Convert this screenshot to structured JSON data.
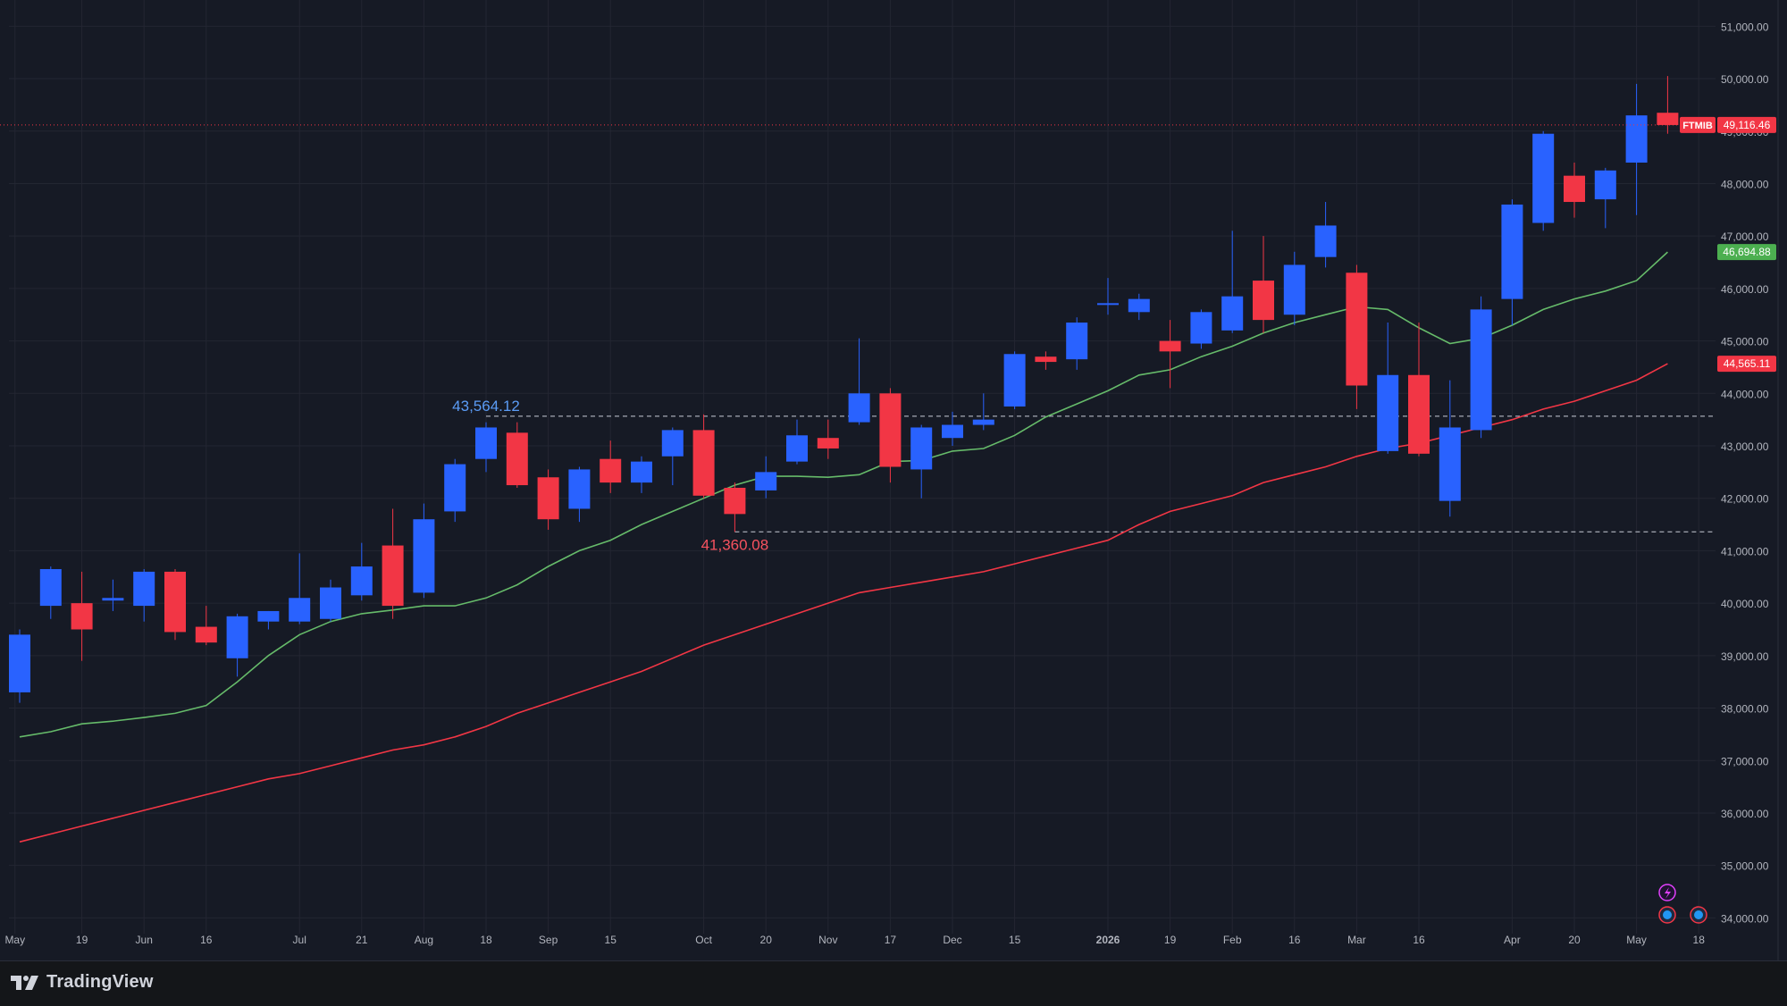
{
  "branding": {
    "logo_text": "TradingView"
  },
  "chart_data": {
    "type": "candlestick",
    "symbol": "FTMIB",
    "last_price": "49,116.46",
    "ema_fast_last": "46,694.88",
    "ema_slow_last": "44,565.11",
    "high_marker": "43,564.12",
    "low_marker": "41,360.08",
    "high_value": 43564.12,
    "low_value": 41360.08,
    "y_ticks": [
      "34,000.00",
      "35,000.00",
      "36,000.00",
      "37,000.00",
      "38,000.00",
      "39,000.00",
      "40,000.00",
      "41,000.00",
      "42,000.00",
      "43,000.00",
      "44,000.00",
      "45,000.00",
      "46,000.00",
      "47,000.00",
      "48,000.00",
      "49,000.00",
      "50,000.00",
      "51,000.00"
    ],
    "y_range": [
      33700,
      51500
    ],
    "x_ticks": [
      "May",
      "19",
      "Jun",
      "16",
      "Jul",
      "21",
      "Aug",
      "18",
      "Sep",
      "15",
      "Oct",
      "20",
      "Nov",
      "17",
      "Dec",
      "15",
      "2026",
      "19",
      "Feb",
      "16",
      "Mar",
      "16",
      "Apr",
      "20",
      "May",
      "18"
    ],
    "x_tick_weeks": [
      -0.15,
      2,
      4,
      6,
      9,
      11,
      13,
      15,
      17,
      19,
      22,
      24,
      26,
      28,
      30,
      32,
      35,
      37,
      39,
      41,
      43,
      45,
      48,
      50,
      52,
      54
    ],
    "candles": [
      {
        "o": 38300,
        "h": 39500,
        "l": 38100,
        "c": 39400
      },
      {
        "o": 39950,
        "h": 40700,
        "l": 39700,
        "c": 40650
      },
      {
        "o": 40000,
        "h": 40600,
        "l": 38900,
        "c": 39500
      },
      {
        "o": 40050,
        "h": 40450,
        "l": 39850,
        "c": 40100
      },
      {
        "o": 39950,
        "h": 40650,
        "l": 39650,
        "c": 40600
      },
      {
        "o": 40600,
        "h": 40650,
        "l": 39300,
        "c": 39450
      },
      {
        "o": 39550,
        "h": 39950,
        "l": 39200,
        "c": 39250
      },
      {
        "o": 38950,
        "h": 39800,
        "l": 38600,
        "c": 39750
      },
      {
        "o": 39650,
        "h": 39850,
        "l": 39500,
        "c": 39850
      },
      {
        "o": 39650,
        "h": 40950,
        "l": 39600,
        "c": 40100
      },
      {
        "o": 39700,
        "h": 40450,
        "l": 39650,
        "c": 40300
      },
      {
        "o": 40150,
        "h": 41150,
        "l": 40050,
        "c": 40700
      },
      {
        "o": 41100,
        "h": 41800,
        "l": 39700,
        "c": 39950
      },
      {
        "o": 40200,
        "h": 41900,
        "l": 40100,
        "c": 41600
      },
      {
        "o": 41750,
        "h": 42750,
        "l": 41550,
        "c": 42650
      },
      {
        "o": 42750,
        "h": 43450,
        "l": 42500,
        "c": 43350
      },
      {
        "o": 43250,
        "h": 43450,
        "l": 42200,
        "c": 42250
      },
      {
        "o": 42400,
        "h": 42550,
        "l": 41400,
        "c": 41600
      },
      {
        "o": 41800,
        "h": 42600,
        "l": 41550,
        "c": 42550
      },
      {
        "o": 42750,
        "h": 43100,
        "l": 42100,
        "c": 42300
      },
      {
        "o": 42300,
        "h": 42800,
        "l": 42100,
        "c": 42700
      },
      {
        "o": 42800,
        "h": 43350,
        "l": 42250,
        "c": 43300
      },
      {
        "o": 43300,
        "h": 43600,
        "l": 42000,
        "c": 42050
      },
      {
        "o": 42200,
        "h": 42300,
        "l": 41360,
        "c": 41700
      },
      {
        "o": 42150,
        "h": 42800,
        "l": 42000,
        "c": 42500
      },
      {
        "o": 42700,
        "h": 43500,
        "l": 42650,
        "c": 43200
      },
      {
        "o": 43150,
        "h": 43500,
        "l": 42750,
        "c": 42950
      },
      {
        "o": 43450,
        "h": 45050,
        "l": 43400,
        "c": 44000
      },
      {
        "o": 44000,
        "h": 44100,
        "l": 42300,
        "c": 42600
      },
      {
        "o": 42550,
        "h": 43400,
        "l": 42000,
        "c": 43350
      },
      {
        "o": 43150,
        "h": 43650,
        "l": 43000,
        "c": 43400
      },
      {
        "o": 43400,
        "h": 44000,
        "l": 43300,
        "c": 43500
      },
      {
        "o": 43750,
        "h": 44800,
        "l": 43700,
        "c": 44750
      },
      {
        "o": 44700,
        "h": 44800,
        "l": 44450,
        "c": 44600
      },
      {
        "o": 44650,
        "h": 45450,
        "l": 44450,
        "c": 45350
      },
      {
        "o": 45700,
        "h": 46200,
        "l": 45500,
        "c": 45720
      },
      {
        "o": 45550,
        "h": 45900,
        "l": 45400,
        "c": 45800
      },
      {
        "o": 45000,
        "h": 45400,
        "l": 44100,
        "c": 44800
      },
      {
        "o": 44950,
        "h": 45600,
        "l": 44850,
        "c": 45550
      },
      {
        "o": 45200,
        "h": 47100,
        "l": 45150,
        "c": 45850
      },
      {
        "o": 46150,
        "h": 47000,
        "l": 45150,
        "c": 45400
      },
      {
        "o": 45500,
        "h": 46700,
        "l": 45300,
        "c": 46450
      },
      {
        "o": 46600,
        "h": 47650,
        "l": 46400,
        "c": 47200
      },
      {
        "o": 46300,
        "h": 46450,
        "l": 43700,
        "c": 44150
      },
      {
        "o": 42900,
        "h": 45350,
        "l": 42850,
        "c": 44350
      },
      {
        "o": 44350,
        "h": 45350,
        "l": 42800,
        "c": 42850
      },
      {
        "o": 41950,
        "h": 44250,
        "l": 41650,
        "c": 43350
      },
      {
        "o": 43300,
        "h": 45850,
        "l": 43150,
        "c": 45600
      },
      {
        "o": 45800,
        "h": 47700,
        "l": 45300,
        "c": 47600
      },
      {
        "o": 47250,
        "h": 49000,
        "l": 47100,
        "c": 48950
      },
      {
        "o": 48150,
        "h": 48400,
        "l": 47350,
        "c": 47650
      },
      {
        "o": 47700,
        "h": 48300,
        "l": 47150,
        "c": 48250
      },
      {
        "o": 48400,
        "h": 49900,
        "l": 47400,
        "c": 49300
      },
      {
        "o": 49350,
        "h": 50050,
        "l": 48950,
        "c": 49116.46
      }
    ],
    "series": [
      {
        "name": "",
        "color": "#66bb6a",
        "values": [
          37450,
          37550,
          37700,
          37750,
          37820,
          37900,
          38050,
          38500,
          39000,
          39400,
          39650,
          39800,
          39870,
          39950,
          39950,
          40100,
          40350,
          40700,
          41000,
          41200,
          41500,
          41750,
          42000,
          42250,
          42420,
          42420,
          42400,
          42450,
          42700,
          42720,
          42900,
          42950,
          43200,
          43550,
          43800,
          44050,
          44350,
          44450,
          44700,
          44900,
          45150,
          45350,
          45500,
          45650,
          45600,
          45250,
          44950,
          45050,
          45300,
          45600,
          45800,
          45950,
          46150,
          46694.88
        ]
      },
      {
        "name": "",
        "color": "#f23645",
        "values": [
          35450,
          35600,
          35750,
          35900,
          36050,
          36200,
          36350,
          36500,
          36650,
          36750,
          36900,
          37050,
          37200,
          37300,
          37450,
          37650,
          37900,
          38100,
          38300,
          38500,
          38700,
          38950,
          39200,
          39400,
          39600,
          39800,
          40000,
          40200,
          40300,
          40400,
          40500,
          40600,
          40750,
          40900,
          41050,
          41200,
          41500,
          41750,
          41900,
          42050,
          42300,
          42450,
          42600,
          42800,
          42950,
          43050,
          43200,
          43350,
          43500,
          43700,
          43850,
          44050,
          44250,
          44565.11
        ]
      }
    ]
  }
}
